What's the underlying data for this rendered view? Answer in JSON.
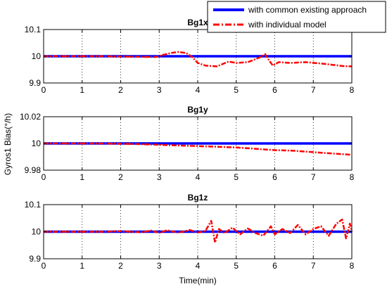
{
  "colors": {
    "common": "#0000ff",
    "individual": "#ff0000",
    "axis": "#000000",
    "grid": "#000000"
  },
  "ylabel": "Gyros1 Bias(°/h)",
  "xlabel": "Time(min)",
  "legend": {
    "placement": "top-right",
    "items": [
      "with common existing approach",
      "with individual model"
    ]
  },
  "chart_data": [
    {
      "type": "line",
      "title": "Bg1x",
      "xlim": [
        0,
        8
      ],
      "ylim": [
        9.9,
        10.1
      ],
      "xticks": [
        0,
        1,
        2,
        3,
        4,
        5,
        6,
        7,
        8
      ],
      "yticks": [
        9.9,
        10,
        10.1
      ],
      "ytick_labels": [
        "9.9",
        "10",
        "10.1"
      ],
      "grid": "x-dotted",
      "series": [
        {
          "name": "with common existing approach",
          "style": "solid",
          "x": [
            0,
            8
          ],
          "y": [
            10.0,
            10.0
          ]
        },
        {
          "name": "with individual model",
          "style": "dash-dot",
          "x": [
            0,
            0.5,
            1,
            1.5,
            2,
            2.5,
            2.9,
            3.1,
            3.3,
            3.5,
            3.7,
            3.85,
            4.0,
            4.2,
            4.5,
            4.8,
            5.0,
            5.3,
            5.6,
            5.75,
            5.85,
            5.95,
            6.1,
            6.4,
            6.8,
            7.2,
            7.5,
            7.8,
            8
          ],
          "y": [
            10.0,
            10.0,
            10.0,
            10.0,
            9.999,
            9.998,
            9.997,
            10.005,
            10.012,
            10.016,
            10.012,
            9.998,
            9.975,
            9.965,
            9.962,
            9.98,
            9.975,
            9.978,
            9.995,
            10.008,
            9.985,
            9.965,
            9.978,
            9.975,
            9.978,
            9.973,
            9.968,
            9.963,
            9.962
          ]
        }
      ]
    },
    {
      "type": "line",
      "title": "Bg1y",
      "xlim": [
        0,
        8
      ],
      "ylim": [
        9.98,
        10.02
      ],
      "xticks": [
        0,
        1,
        2,
        3,
        4,
        5,
        6,
        7,
        8
      ],
      "yticks": [
        9.98,
        10,
        10.02
      ],
      "ytick_labels": [
        "9.98",
        "10",
        "10.02"
      ],
      "grid": "x-dotted",
      "series": [
        {
          "name": "with common existing approach",
          "style": "solid",
          "x": [
            0,
            8
          ],
          "y": [
            10.0,
            10.0
          ]
        },
        {
          "name": "with individual model",
          "style": "dash-dot",
          "x": [
            0,
            0.5,
            1,
            1.5,
            2,
            2.5,
            3,
            3.5,
            4,
            4.5,
            5,
            5.5,
            6,
            6.5,
            7,
            7.5,
            8
          ],
          "y": [
            10.0,
            10.0,
            10.0,
            10.0,
            9.9998,
            9.9995,
            9.999,
            9.9985,
            9.998,
            9.9975,
            9.997,
            9.996,
            9.995,
            9.9945,
            9.9935,
            9.9925,
            9.9915
          ]
        }
      ]
    },
    {
      "type": "line",
      "title": "Bg1z",
      "xlim": [
        0,
        8
      ],
      "ylim": [
        9.9,
        10.1
      ],
      "xticks": [
        0,
        1,
        2,
        3,
        4,
        5,
        6,
        7,
        8
      ],
      "yticks": [
        9.9,
        10,
        10.1
      ],
      "ytick_labels": [
        "9.9",
        "10",
        "10.1"
      ],
      "grid": "x-dotted",
      "series": [
        {
          "name": "with common existing approach",
          "style": "solid",
          "x": [
            0,
            8
          ],
          "y": [
            10.0,
            10.0
          ]
        },
        {
          "name": "with individual model",
          "style": "dash-dot",
          "x": [
            0,
            0.5,
            1,
            1.5,
            2,
            2.5,
            2.8,
            3.0,
            3.2,
            3.5,
            3.8,
            4.0,
            4.2,
            4.35,
            4.45,
            4.55,
            4.7,
            4.9,
            5.1,
            5.3,
            5.5,
            5.7,
            5.9,
            6.0,
            6.2,
            6.4,
            6.6,
            6.8,
            7.0,
            7.2,
            7.4,
            7.6,
            7.75,
            7.85,
            7.95,
            8
          ],
          "y": [
            10.0,
            10.0,
            10.0,
            10.0,
            10.002,
            9.998,
            10.004,
            9.996,
            10.005,
            9.997,
            10.006,
            9.997,
            10.003,
            10.04,
            9.96,
            10.01,
            9.995,
            10.015,
            9.99,
            10.012,
            9.995,
            9.985,
            10.02,
            9.99,
            10.01,
            9.995,
            10.025,
            9.99,
            10.01,
            10.02,
            9.985,
            10.03,
            10.045,
            9.975,
            10.03,
            10.0
          ]
        }
      ]
    }
  ]
}
